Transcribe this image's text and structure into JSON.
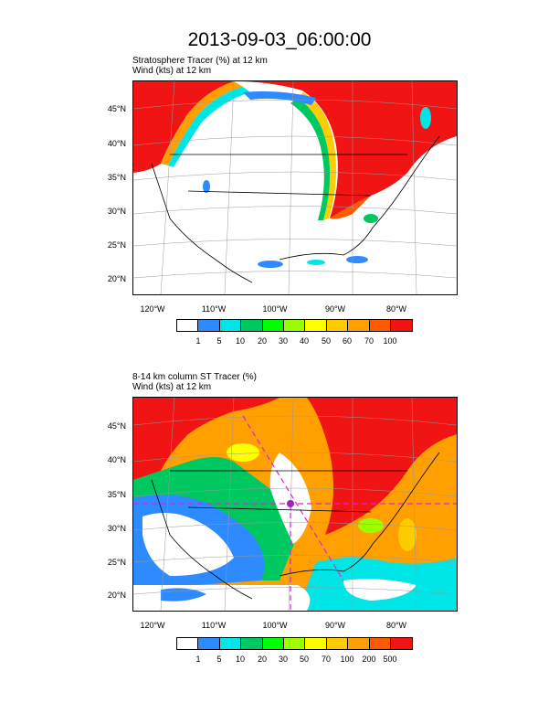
{
  "title": "2013-09-03_06:00:00",
  "panel1": {
    "subtitle_line1": "Stratosphere Tracer   (%)     at   12 km",
    "subtitle_line2": "Wind   (kts)     at   12 km",
    "lat_labels": [
      "45°N",
      "40°N",
      "35°N",
      "30°N",
      "25°N",
      "20°N"
    ],
    "lon_labels": [
      "120°W",
      "110°W",
      "100°W",
      "90°W",
      "80°W"
    ],
    "colorbar_labels": [
      "1",
      "5",
      "10",
      "20",
      "30",
      "40",
      "50",
      "60",
      "70",
      "100"
    ]
  },
  "panel2": {
    "subtitle_line1": "8-14 km column ST Tracer   (%)",
    "subtitle_line2": "Wind   (kts)     at   12 km",
    "lat_labels": [
      "45°N",
      "40°N",
      "35°N",
      "30°N",
      "25°N",
      "20°N"
    ],
    "lon_labels": [
      "120°W",
      "110°W",
      "100°W",
      "90°W",
      "80°W"
    ],
    "colorbar_labels": [
      "1",
      "5",
      "10",
      "20",
      "30",
      "50",
      "70",
      "100",
      "200",
      "500"
    ]
  },
  "colors": [
    "#ffffff",
    "#2e8bff",
    "#00e5e5",
    "#00c860",
    "#00ff00",
    "#9cff00",
    "#ffff00",
    "#ffcc00",
    "#ffa000",
    "#ff5a00",
    "#f01414"
  ]
}
